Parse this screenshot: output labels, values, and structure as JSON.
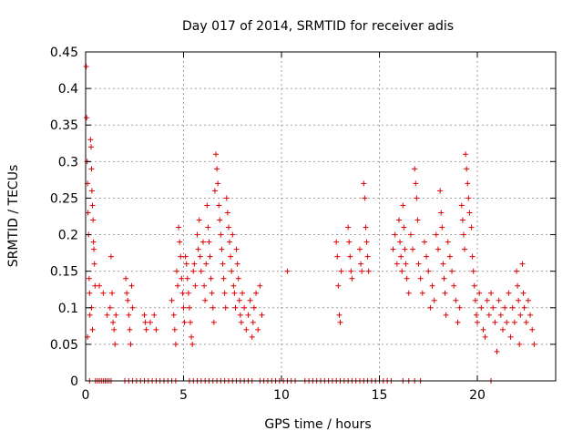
{
  "chart_data": {
    "type": "scatter",
    "title": "Day 017 of 2014, SRMTID for receiver adis",
    "xlabel": "GPS time / hours",
    "ylabel": "SRMTID / TECUs",
    "xlim": [
      0,
      24
    ],
    "ylim": [
      0,
      0.45
    ],
    "x_ticks": [
      0,
      5,
      10,
      15,
      20
    ],
    "y_ticks": [
      0,
      0.05,
      0.1,
      0.15,
      0.2,
      0.25,
      0.3,
      0.35,
      0.4,
      0.45
    ],
    "x_tick_labels": [
      "0",
      "5",
      "10",
      "15",
      "20"
    ],
    "y_tick_labels": [
      "0",
      "0.05",
      "0.1",
      "0.15",
      "0.2",
      "0.25",
      "0.3",
      "0.35",
      "0.4",
      "0.45"
    ],
    "grid": true,
    "marker": "+",
    "color": "#e00000",
    "series": [
      {
        "name": "SRMTID",
        "points": [
          [
            0.03,
            0.43
          ],
          [
            0.05,
            0.36
          ],
          [
            0.08,
            0.3
          ],
          [
            0.1,
            0.27
          ],
          [
            0.12,
            0.23
          ],
          [
            0.15,
            0.2
          ],
          [
            0.18,
            0.14
          ],
          [
            0.2,
            0.12
          ],
          [
            0.22,
            0.09
          ],
          [
            0.1,
            0.06
          ],
          [
            0.25,
            0.33
          ],
          [
            0.28,
            0.32
          ],
          [
            0.3,
            0.29
          ],
          [
            0.32,
            0.26
          ],
          [
            0.35,
            0.24
          ],
          [
            0.38,
            0.22
          ],
          [
            0.4,
            0.19
          ],
          [
            0.42,
            0.18
          ],
          [
            0.45,
            0.16
          ],
          [
            0.48,
            0.13
          ],
          [
            0.3,
            0.1
          ],
          [
            0.35,
            0.07
          ],
          [
            0.7,
            0.13
          ],
          [
            0.9,
            0.12
          ],
          [
            1.1,
            0.09
          ],
          [
            1.25,
            0.1
          ],
          [
            1.3,
            0.17
          ],
          [
            1.35,
            0.12
          ],
          [
            1.4,
            0.08
          ],
          [
            1.45,
            0.07
          ],
          [
            1.5,
            0.05
          ],
          [
            1.55,
            0.09
          ],
          [
            2.05,
            0.14
          ],
          [
            2.1,
            0.12
          ],
          [
            2.15,
            0.11
          ],
          [
            2.2,
            0.09
          ],
          [
            2.25,
            0.07
          ],
          [
            2.3,
            0.05
          ],
          [
            2.35,
            0.13
          ],
          [
            2.4,
            0.1
          ],
          [
            3.0,
            0.09
          ],
          [
            3.05,
            0.08
          ],
          [
            3.1,
            0.07
          ],
          [
            3.3,
            0.08
          ],
          [
            3.5,
            0.09
          ],
          [
            3.6,
            0.07
          ],
          [
            4.4,
            0.11
          ],
          [
            4.5,
            0.09
          ],
          [
            4.55,
            0.07
          ],
          [
            4.6,
            0.05
          ],
          [
            4.65,
            0.15
          ],
          [
            4.7,
            0.13
          ],
          [
            4.75,
            0.21
          ],
          [
            4.8,
            0.19
          ],
          [
            4.85,
            0.17
          ],
          [
            4.9,
            0.14
          ],
          [
            4.95,
            0.12
          ],
          [
            5.0,
            0.1
          ],
          [
            5.05,
            0.08
          ],
          [
            5.1,
            0.17
          ],
          [
            5.15,
            0.16
          ],
          [
            5.2,
            0.14
          ],
          [
            5.25,
            0.12
          ],
          [
            5.3,
            0.1
          ],
          [
            5.35,
            0.08
          ],
          [
            5.4,
            0.06
          ],
          [
            5.45,
            0.05
          ],
          [
            5.5,
            0.15
          ],
          [
            5.55,
            0.16
          ],
          [
            5.6,
            0.13
          ],
          [
            5.7,
            0.2
          ],
          [
            5.75,
            0.18
          ],
          [
            5.8,
            0.22
          ],
          [
            5.85,
            0.17
          ],
          [
            5.9,
            0.15
          ],
          [
            6.0,
            0.19
          ],
          [
            6.05,
            0.13
          ],
          [
            6.1,
            0.11
          ],
          [
            6.15,
            0.16
          ],
          [
            6.2,
            0.24
          ],
          [
            6.25,
            0.21
          ],
          [
            6.3,
            0.19
          ],
          [
            6.35,
            0.17
          ],
          [
            6.4,
            0.14
          ],
          [
            6.45,
            0.12
          ],
          [
            6.5,
            0.1
          ],
          [
            6.55,
            0.08
          ],
          [
            6.6,
            0.26
          ],
          [
            6.65,
            0.31
          ],
          [
            6.7,
            0.29
          ],
          [
            6.75,
            0.27
          ],
          [
            6.8,
            0.24
          ],
          [
            6.85,
            0.22
          ],
          [
            6.9,
            0.2
          ],
          [
            6.95,
            0.18
          ],
          [
            7.0,
            0.16
          ],
          [
            7.05,
            0.14
          ],
          [
            7.1,
            0.12
          ],
          [
            7.15,
            0.1
          ],
          [
            7.2,
            0.25
          ],
          [
            7.25,
            0.23
          ],
          [
            7.3,
            0.21
          ],
          [
            7.35,
            0.19
          ],
          [
            7.4,
            0.17
          ],
          [
            7.45,
            0.15
          ],
          [
            7.5,
            0.2
          ],
          [
            7.55,
            0.13
          ],
          [
            7.6,
            0.12
          ],
          [
            7.65,
            0.1
          ],
          [
            7.7,
            0.18
          ],
          [
            7.75,
            0.16
          ],
          [
            7.8,
            0.14
          ],
          [
            7.85,
            0.11
          ],
          [
            7.9,
            0.09
          ],
          [
            7.95,
            0.08
          ],
          [
            8.0,
            0.12
          ],
          [
            8.1,
            0.1
          ],
          [
            8.2,
            0.07
          ],
          [
            8.3,
            0.09
          ],
          [
            8.4,
            0.11
          ],
          [
            8.5,
            0.06
          ],
          [
            8.55,
            0.08
          ],
          [
            8.6,
            0.1
          ],
          [
            8.7,
            0.12
          ],
          [
            8.8,
            0.07
          ],
          [
            8.9,
            0.13
          ],
          [
            9.0,
            0.09
          ],
          [
            10.3,
            0.15
          ],
          [
            12.8,
            0.19
          ],
          [
            12.85,
            0.17
          ],
          [
            12.9,
            0.13
          ],
          [
            12.95,
            0.09
          ],
          [
            13.0,
            0.08
          ],
          [
            13.05,
            0.15
          ],
          [
            13.4,
            0.21
          ],
          [
            13.45,
            0.19
          ],
          [
            13.5,
            0.17
          ],
          [
            13.55,
            0.15
          ],
          [
            13.6,
            0.14
          ],
          [
            14.0,
            0.18
          ],
          [
            14.05,
            0.16
          ],
          [
            14.1,
            0.15
          ],
          [
            14.2,
            0.27
          ],
          [
            14.25,
            0.25
          ],
          [
            14.3,
            0.21
          ],
          [
            14.35,
            0.19
          ],
          [
            14.4,
            0.17
          ],
          [
            14.45,
            0.15
          ],
          [
            15.7,
            0.18
          ],
          [
            15.8,
            0.2
          ],
          [
            15.9,
            0.16
          ],
          [
            16.0,
            0.22
          ],
          [
            16.05,
            0.19
          ],
          [
            16.1,
            0.17
          ],
          [
            16.15,
            0.15
          ],
          [
            16.2,
            0.24
          ],
          [
            16.25,
            0.21
          ],
          [
            16.3,
            0.18
          ],
          [
            16.35,
            0.16
          ],
          [
            16.4,
            0.14
          ],
          [
            16.5,
            0.12
          ],
          [
            16.6,
            0.2
          ],
          [
            16.7,
            0.18
          ],
          [
            16.8,
            0.29
          ],
          [
            16.85,
            0.27
          ],
          [
            16.9,
            0.25
          ],
          [
            16.95,
            0.22
          ],
          [
            17.0,
            0.16
          ],
          [
            17.1,
            0.14
          ],
          [
            17.2,
            0.12
          ],
          [
            17.3,
            0.19
          ],
          [
            17.4,
            0.17
          ],
          [
            17.5,
            0.15
          ],
          [
            17.6,
            0.1
          ],
          [
            17.7,
            0.13
          ],
          [
            17.8,
            0.11
          ],
          [
            17.9,
            0.2
          ],
          [
            18.0,
            0.18
          ],
          [
            18.1,
            0.26
          ],
          [
            18.15,
            0.23
          ],
          [
            18.2,
            0.21
          ],
          [
            18.25,
            0.16
          ],
          [
            18.3,
            0.14
          ],
          [
            18.35,
            0.12
          ],
          [
            18.4,
            0.09
          ],
          [
            18.5,
            0.19
          ],
          [
            18.6,
            0.17
          ],
          [
            18.7,
            0.15
          ],
          [
            18.8,
            0.13
          ],
          [
            18.9,
            0.11
          ],
          [
            19.0,
            0.08
          ],
          [
            19.1,
            0.1
          ],
          [
            19.2,
            0.24
          ],
          [
            19.25,
            0.22
          ],
          [
            19.3,
            0.2
          ],
          [
            19.35,
            0.18
          ],
          [
            19.4,
            0.31
          ],
          [
            19.45,
            0.29
          ],
          [
            19.5,
            0.27
          ],
          [
            19.55,
            0.25
          ],
          [
            19.6,
            0.23
          ],
          [
            19.7,
            0.21
          ],
          [
            19.75,
            0.17
          ],
          [
            19.8,
            0.15
          ],
          [
            19.85,
            0.13
          ],
          [
            19.9,
            0.11
          ],
          [
            19.95,
            0.09
          ],
          [
            20.0,
            0.08
          ],
          [
            20.1,
            0.12
          ],
          [
            20.2,
            0.1
          ],
          [
            20.3,
            0.07
          ],
          [
            20.4,
            0.06
          ],
          [
            20.5,
            0.11
          ],
          [
            20.6,
            0.09
          ],
          [
            20.7,
            0.12
          ],
          [
            20.8,
            0.1
          ],
          [
            20.9,
            0.08
          ],
          [
            21.0,
            0.04
          ],
          [
            21.1,
            0.11
          ],
          [
            21.2,
            0.09
          ],
          [
            21.3,
            0.07
          ],
          [
            21.4,
            0.1
          ],
          [
            21.5,
            0.08
          ],
          [
            21.6,
            0.12
          ],
          [
            21.7,
            0.06
          ],
          [
            21.8,
            0.1
          ],
          [
            21.9,
            0.08
          ],
          [
            22.0,
            0.15
          ],
          [
            22.05,
            0.13
          ],
          [
            22.1,
            0.11
          ],
          [
            22.15,
            0.05
          ],
          [
            22.2,
            0.09
          ],
          [
            22.3,
            0.16
          ],
          [
            22.35,
            0.12
          ],
          [
            22.4,
            0.1
          ],
          [
            22.5,
            0.08
          ],
          [
            22.6,
            0.11
          ],
          [
            22.7,
            0.09
          ],
          [
            22.8,
            0.07
          ],
          [
            22.9,
            0.05
          ],
          [
            0.2,
            0.0
          ],
          [
            0.5,
            0.0
          ],
          [
            0.6,
            0.0
          ],
          [
            0.7,
            0.0
          ],
          [
            0.8,
            0.0
          ],
          [
            0.9,
            0.0
          ],
          [
            1.0,
            0.0
          ],
          [
            1.1,
            0.0
          ],
          [
            1.2,
            0.0
          ],
          [
            1.3,
            0.0
          ],
          [
            2.0,
            0.0
          ],
          [
            2.2,
            0.0
          ],
          [
            2.4,
            0.0
          ],
          [
            2.6,
            0.0
          ],
          [
            2.8,
            0.0
          ],
          [
            3.0,
            0.0
          ],
          [
            3.2,
            0.0
          ],
          [
            3.4,
            0.0
          ],
          [
            3.6,
            0.0
          ],
          [
            3.8,
            0.0
          ],
          [
            4.0,
            0.0
          ],
          [
            4.2,
            0.0
          ],
          [
            4.4,
            0.0
          ],
          [
            4.6,
            0.0
          ],
          [
            5.3,
            0.0
          ],
          [
            5.5,
            0.0
          ],
          [
            5.7,
            0.0
          ],
          [
            5.9,
            0.0
          ],
          [
            6.1,
            0.0
          ],
          [
            6.3,
            0.0
          ],
          [
            6.5,
            0.0
          ],
          [
            6.7,
            0.0
          ],
          [
            6.9,
            0.0
          ],
          [
            7.1,
            0.0
          ],
          [
            7.3,
            0.0
          ],
          [
            7.5,
            0.0
          ],
          [
            7.7,
            0.0
          ],
          [
            7.9,
            0.0
          ],
          [
            8.1,
            0.0
          ],
          [
            8.3,
            0.0
          ],
          [
            8.5,
            0.0
          ],
          [
            8.9,
            0.0
          ],
          [
            9.1,
            0.0
          ],
          [
            9.3,
            0.0
          ],
          [
            9.5,
            0.0
          ],
          [
            9.7,
            0.0
          ],
          [
            9.9,
            0.0
          ],
          [
            10.1,
            0.0
          ],
          [
            10.3,
            0.0
          ],
          [
            10.5,
            0.0
          ],
          [
            10.7,
            0.0
          ],
          [
            11.2,
            0.0
          ],
          [
            11.4,
            0.0
          ],
          [
            11.6,
            0.0
          ],
          [
            11.8,
            0.0
          ],
          [
            12.0,
            0.0
          ],
          [
            12.2,
            0.0
          ],
          [
            12.4,
            0.0
          ],
          [
            12.6,
            0.0
          ],
          [
            12.8,
            0.0
          ],
          [
            13.0,
            0.0
          ],
          [
            13.2,
            0.0
          ],
          [
            13.4,
            0.0
          ],
          [
            13.6,
            0.0
          ],
          [
            13.8,
            0.0
          ],
          [
            14.0,
            0.0
          ],
          [
            14.2,
            0.0
          ],
          [
            14.4,
            0.0
          ],
          [
            14.6,
            0.0
          ],
          [
            14.8,
            0.0
          ],
          [
            15.0,
            0.0
          ],
          [
            15.2,
            0.0
          ],
          [
            15.4,
            0.0
          ],
          [
            15.6,
            0.0
          ],
          [
            16.2,
            0.0
          ],
          [
            16.5,
            0.0
          ],
          [
            16.8,
            0.0
          ],
          [
            17.1,
            0.0
          ],
          [
            20.7,
            0.0
          ]
        ]
      }
    ]
  }
}
